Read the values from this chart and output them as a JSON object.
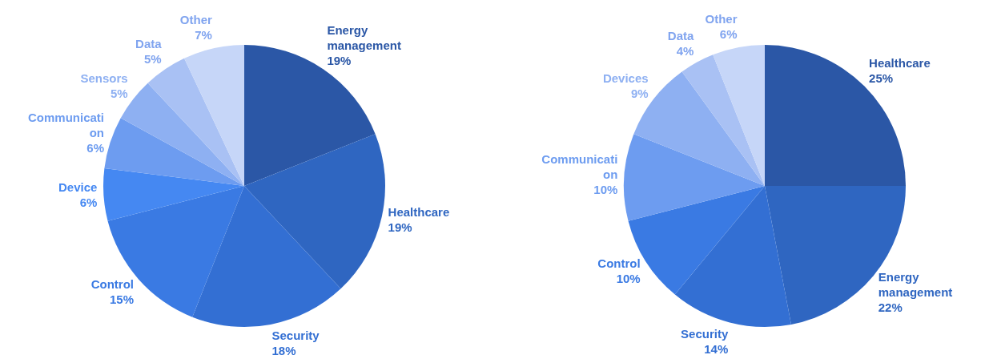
{
  "chart_data": [
    {
      "type": "pie",
      "categories": [
        "Energy management",
        "Healthcare",
        "Security",
        "Control",
        "Device",
        "Communication",
        "Sensors",
        "Data",
        "Other"
      ],
      "values": [
        19,
        19,
        18,
        15,
        6,
        6,
        5,
        5,
        7
      ],
      "colors": [
        "#2b57a6",
        "#2f66c1",
        "#336fd3",
        "#3a7ae3",
        "#4588f2",
        "#6d9cf0",
        "#8eb0f2",
        "#a9c1f4",
        "#c6d6f8"
      ],
      "value_labels": [
        "19%",
        "19%",
        "18%",
        "15%",
        "6%",
        "6%",
        "5%",
        "5%",
        "7%"
      ]
    },
    {
      "type": "pie",
      "categories": [
        "Healthcare",
        "Energy management",
        "Security",
        "Control",
        "Communication",
        "Devices",
        "Data",
        "Other"
      ],
      "values": [
        25,
        22,
        14,
        10,
        10,
        9,
        4,
        6
      ],
      "colors": [
        "#2b57a6",
        "#2f66c1",
        "#336fd3",
        "#3a7ae3",
        "#6d9cf0",
        "#8eb0f2",
        "#a9c1f4",
        "#c6d6f8"
      ],
      "value_labels": [
        "25%",
        "22%",
        "14%",
        "10%",
        "10%",
        "9%",
        "4%",
        "6%"
      ]
    }
  ]
}
